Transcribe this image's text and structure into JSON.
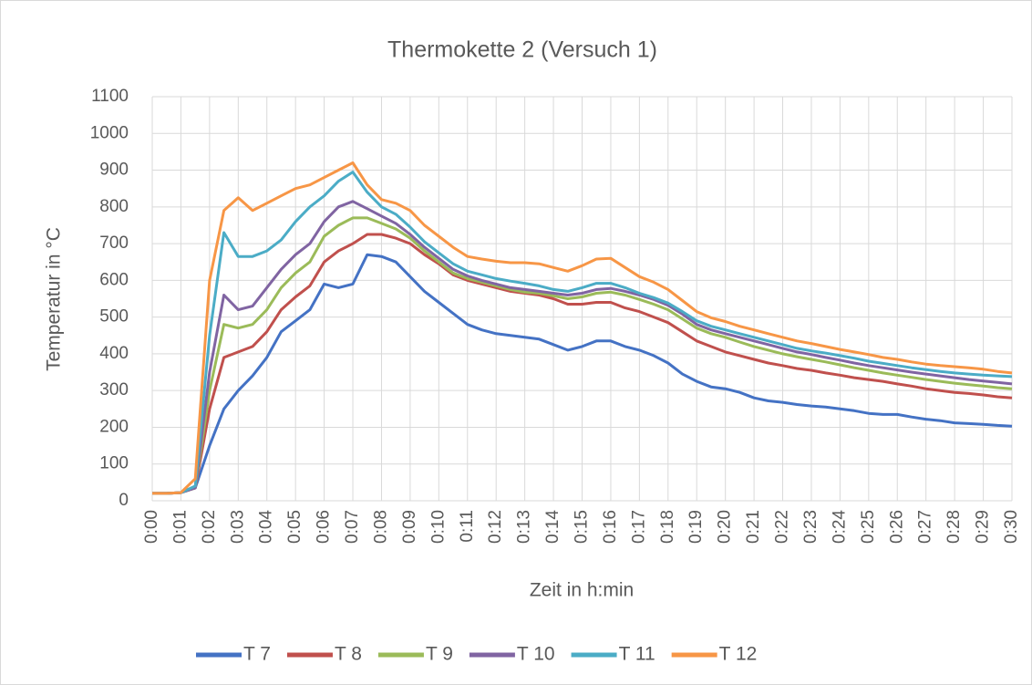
{
  "chart_data": {
    "type": "line",
    "title": "Thermokette 2 (Versuch 1)",
    "x_label": "Zeit in h:min",
    "y_label": "Temperatur in °C",
    "x": [
      0,
      0.5,
      1,
      1.5,
      2,
      2.5,
      3,
      3.5,
      4,
      4.5,
      5,
      5.5,
      6,
      6.5,
      7,
      7.5,
      8,
      8.5,
      9,
      9.5,
      10,
      10.5,
      11,
      11.5,
      12,
      12.5,
      13,
      13.5,
      14,
      14.5,
      15,
      15.5,
      16,
      16.5,
      17,
      17.5,
      18,
      18.5,
      19,
      19.5,
      20,
      20.5,
      21,
      21.5,
      22,
      22.5,
      23,
      23.5,
      24,
      24.5,
      25,
      25.5,
      26,
      26.5,
      27,
      27.5,
      28,
      28.5,
      29,
      29.5,
      30
    ],
    "series": [
      {
        "name": "T 7",
        "color": "#4472c4",
        "values": [
          20,
          20,
          22,
          35,
          150,
          250,
          300,
          340,
          390,
          460,
          490,
          520,
          590,
          580,
          590,
          670,
          665,
          650,
          610,
          570,
          540,
          510,
          480,
          465,
          455,
          450,
          445,
          440,
          425,
          410,
          420,
          435,
          435,
          420,
          410,
          395,
          375,
          345,
          325,
          310,
          305,
          295,
          280,
          272,
          268,
          262,
          258,
          255,
          250,
          245,
          238,
          235,
          235,
          228,
          222,
          218,
          212,
          210,
          208,
          205,
          203
        ]
      },
      {
        "name": "T 8",
        "color": "#c0504d",
        "values": [
          20,
          20,
          22,
          35,
          250,
          390,
          405,
          420,
          460,
          520,
          555,
          585,
          650,
          680,
          700,
          725,
          725,
          715,
          700,
          670,
          645,
          615,
          600,
          590,
          580,
          570,
          565,
          560,
          550,
          535,
          535,
          540,
          540,
          525,
          515,
          500,
          485,
          460,
          435,
          420,
          405,
          395,
          385,
          375,
          368,
          360,
          355,
          348,
          342,
          335,
          330,
          325,
          318,
          312,
          305,
          300,
          295,
          292,
          288,
          283,
          280
        ]
      },
      {
        "name": "T 9",
        "color": "#9bbb59",
        "values": [
          20,
          20,
          22,
          35,
          300,
          480,
          470,
          480,
          520,
          580,
          620,
          650,
          720,
          750,
          770,
          770,
          755,
          740,
          715,
          680,
          650,
          620,
          605,
          595,
          585,
          575,
          568,
          565,
          558,
          550,
          555,
          565,
          568,
          560,
          548,
          535,
          520,
          495,
          470,
          455,
          445,
          432,
          420,
          410,
          400,
          392,
          385,
          378,
          370,
          362,
          355,
          348,
          342,
          336,
          330,
          325,
          320,
          316,
          312,
          308,
          305
        ]
      },
      {
        "name": "T 10",
        "color": "#8064a2",
        "values": [
          20,
          20,
          22,
          35,
          350,
          560,
          520,
          530,
          580,
          630,
          670,
          700,
          760,
          800,
          815,
          795,
          775,
          755,
          725,
          690,
          660,
          630,
          612,
          600,
          590,
          580,
          575,
          570,
          565,
          560,
          565,
          575,
          578,
          570,
          560,
          548,
          532,
          508,
          480,
          465,
          455,
          445,
          435,
          425,
          415,
          405,
          398,
          390,
          383,
          375,
          368,
          362,
          356,
          350,
          345,
          340,
          335,
          330,
          326,
          322,
          318
        ]
      },
      {
        "name": "T 11",
        "color": "#4bacc6",
        "values": [
          20,
          20,
          22,
          40,
          450,
          730,
          665,
          665,
          680,
          710,
          760,
          800,
          830,
          870,
          895,
          840,
          800,
          780,
          745,
          705,
          675,
          645,
          625,
          615,
          605,
          598,
          592,
          585,
          575,
          570,
          580,
          592,
          592,
          580,
          565,
          553,
          538,
          515,
          490,
          475,
          465,
          455,
          445,
          435,
          425,
          415,
          408,
          402,
          395,
          388,
          380,
          374,
          368,
          362,
          357,
          352,
          348,
          345,
          342,
          340,
          338
        ]
      },
      {
        "name": "T 12",
        "color": "#f79646",
        "values": [
          20,
          20,
          22,
          60,
          600,
          790,
          825,
          790,
          810,
          830,
          850,
          860,
          880,
          900,
          920,
          860,
          820,
          810,
          790,
          750,
          720,
          690,
          665,
          658,
          652,
          648,
          648,
          645,
          635,
          625,
          640,
          658,
          660,
          635,
          610,
          595,
          575,
          545,
          515,
          498,
          488,
          475,
          465,
          455,
          445,
          435,
          428,
          420,
          412,
          405,
          398,
          390,
          385,
          378,
          372,
          368,
          365,
          362,
          358,
          352,
          348
        ]
      }
    ],
    "xlim": [
      0,
      30
    ],
    "xticks": [
      {
        "value": 0,
        "label": "0:00"
      },
      {
        "value": 1,
        "label": "0:01"
      },
      {
        "value": 2,
        "label": "0:02"
      },
      {
        "value": 3,
        "label": "0:03"
      },
      {
        "value": 4,
        "label": "0:04"
      },
      {
        "value": 5,
        "label": "0:05"
      },
      {
        "value": 6,
        "label": "0:06"
      },
      {
        "value": 7,
        "label": "0:07"
      },
      {
        "value": 8,
        "label": "0:08"
      },
      {
        "value": 9,
        "label": "0:09"
      },
      {
        "value": 10,
        "label": "0:10"
      },
      {
        "value": 11,
        "label": "0:11"
      },
      {
        "value": 12,
        "label": "0:12"
      },
      {
        "value": 13,
        "label": "0:13"
      },
      {
        "value": 14,
        "label": "0:14"
      },
      {
        "value": 15,
        "label": "0:15"
      },
      {
        "value": 16,
        "label": "0:16"
      },
      {
        "value": 17,
        "label": "0:17"
      },
      {
        "value": 18,
        "label": "0:18"
      },
      {
        "value": 19,
        "label": "0:19"
      },
      {
        "value": 20,
        "label": "0:20"
      },
      {
        "value": 21,
        "label": "0:21"
      },
      {
        "value": 22,
        "label": "0:22"
      },
      {
        "value": 23,
        "label": "0:23"
      },
      {
        "value": 24,
        "label": "0:24"
      },
      {
        "value": 25,
        "label": "0:25"
      },
      {
        "value": 26,
        "label": "0:26"
      },
      {
        "value": 27,
        "label": "0:27"
      },
      {
        "value": 28,
        "label": "0:28"
      },
      {
        "value": 29,
        "label": "0:29"
      },
      {
        "value": 30,
        "label": "0:30"
      }
    ],
    "ylim": [
      0,
      1100
    ],
    "yticks": [
      0,
      100,
      200,
      300,
      400,
      500,
      600,
      700,
      800,
      900,
      1000,
      1100
    ],
    "grid": true,
    "legend": "bottom"
  }
}
